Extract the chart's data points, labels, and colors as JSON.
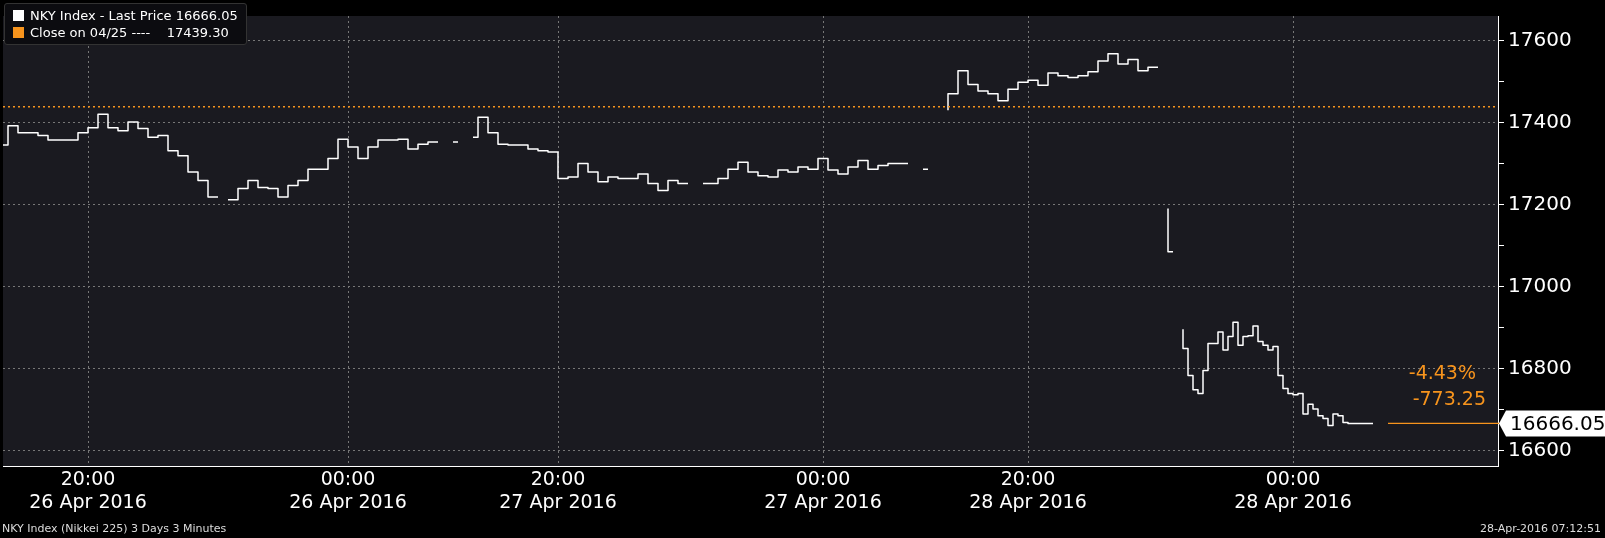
{
  "chart_data": {
    "type": "step",
    "categories": [
      null,
      null,
      null,
      null,
      null,
      null,
      null,
      null,
      null,
      null,
      null,
      null,
      null,
      null,
      null,
      null,
      null,
      "20:00\n26 Apr 2016",
      null,
      null,
      null,
      null,
      null,
      null,
      null,
      null,
      null,
      null,
      null,
      null,
      null,
      null,
      null,
      null,
      null,
      null,
      null,
      null,
      null,
      null,
      null,
      null,
      null,
      null,
      null,
      null,
      null,
      null,
      null,
      null,
      null,
      null,
      null,
      null,
      null,
      null,
      null,
      null,
      null,
      null,
      null,
      null,
      null,
      null,
      null,
      null,
      null,
      null,
      null,
      "00:00\n26 Apr 2016",
      null,
      null,
      null,
      null,
      null,
      null,
      null,
      null,
      null,
      null,
      null,
      null,
      null,
      null,
      null,
      null,
      null,
      null,
      null,
      null,
      null,
      null,
      null,
      null,
      null,
      null,
      null,
      null,
      null,
      null,
      null,
      null,
      null,
      null,
      null,
      null,
      null,
      null,
      null,
      null,
      null,
      "20:00\n27 Apr 2016",
      null,
      null,
      null,
      null,
      null,
      null,
      null,
      null,
      null,
      null,
      null,
      null,
      null,
      null,
      null,
      null,
      null,
      null,
      null,
      null,
      null,
      null,
      null,
      null,
      null,
      null,
      null,
      null,
      null,
      null,
      null,
      null,
      null,
      null,
      null,
      null,
      null,
      null,
      null,
      null,
      null,
      null,
      null,
      null,
      null,
      null,
      null,
      null,
      null,
      null,
      null,
      null,
      "00:00\n27 Apr 2016",
      null,
      null,
      null,
      null,
      null,
      null,
      null,
      null,
      null,
      null,
      null,
      null,
      null,
      null,
      null,
      null,
      null,
      null,
      null,
      null,
      null,
      null,
      null,
      null,
      null,
      null,
      null,
      null,
      null,
      null,
      null,
      null,
      null,
      null,
      null,
      null,
      null,
      null,
      null,
      null,
      "20:00\n28 Apr 2016",
      null,
      null,
      null,
      null,
      null,
      null,
      null,
      null,
      null,
      null,
      null,
      null,
      null,
      null,
      null,
      null,
      null,
      null,
      null,
      null,
      null,
      null,
      null,
      null,
      null,
      null,
      null,
      null,
      null,
      null,
      null,
      null,
      null,
      null,
      null,
      null,
      null,
      null,
      null,
      null,
      null,
      null,
      null,
      null,
      null,
      null,
      null,
      null,
      null,
      null,
      null,
      null,
      "00:00\n28 Apr 2016",
      null,
      null,
      null,
      null,
      null,
      null,
      null,
      null,
      null,
      null,
      null,
      null,
      null,
      null,
      null,
      null,
      null,
      null,
      null,
      null,
      null,
      null,
      null,
      null,
      null,
      null,
      null,
      null,
      null,
      null,
      null,
      null,
      null,
      null,
      null,
      null,
      null,
      null,
      null,
      null,
      null
    ],
    "series": [
      {
        "name": "NKY Index - Last Price 16666.05",
        "color": "#ffffff",
        "values": [
          17346,
          17346,
          17393,
          17393,
          17376,
          17376,
          17376,
          17376,
          17369,
          17369,
          17358,
          17358,
          17358,
          17358,
          17358,
          17358,
          17376,
          17376,
          17388,
          17388,
          17421,
          17421,
          17388,
          17388,
          17381,
          17381,
          17402,
          17402,
          17386,
          17386,
          17365,
          17365,
          17369,
          17369,
          17332,
          17332,
          17320,
          17320,
          17280,
          17280,
          17259,
          17259,
          17219,
          17219,
          null,
          17212,
          17212,
          17212,
          17240,
          17240,
          17259,
          17259,
          17242,
          17242,
          17240,
          17240,
          17219,
          17219,
          17247,
          17247,
          17259,
          17259,
          17287,
          17287,
          17287,
          17287,
          17313,
          17313,
          17360,
          17360,
          17341,
          17341,
          17313,
          17313,
          17341,
          17341,
          17358,
          17358,
          17358,
          17358,
          17360,
          17360,
          17336,
          17336,
          17348,
          17348,
          17353,
          17353,
          null,
          null,
          17353,
          17353,
          null,
          null,
          17365,
          17365,
          17414,
          17414,
          17376,
          17376,
          17348,
          17348,
          17346,
          17346,
          17346,
          17346,
          17336,
          17336,
          17332,
          17332,
          17329,
          17329,
          17264,
          17264,
          17268,
          17268,
          17301,
          17301,
          17280,
          17280,
          17256,
          17256,
          17268,
          17268,
          17264,
          17264,
          17264,
          17264,
          17275,
          17275,
          17252,
          17252,
          17235,
          17235,
          17259,
          17259,
          17252,
          17252,
          null,
          null,
          17252,
          17252,
          17252,
          17252,
          17264,
          17264,
          17287,
          17287,
          17304,
          17304,
          17280,
          17280,
          17271,
          17271,
          17268,
          17268,
          17285,
          17285,
          17280,
          17280,
          17292,
          17292,
          17287,
          17287,
          17313,
          17313,
          17285,
          17285,
          17275,
          17275,
          17292,
          17292,
          17308,
          17308,
          17287,
          17287,
          17296,
          17296,
          17301,
          17301,
          17301,
          17301,
          null,
          null,
          17287,
          17287,
          null,
          null,
          null,
          17431,
          17471,
          17471,
          17527,
          17527,
          17494,
          17494,
          17478,
          17478,
          17471,
          17471,
          17454,
          17454,
          17482,
          17482,
          17499,
          17499,
          17504,
          17504,
          17492,
          17492,
          17522,
          17522,
          17515,
          17515,
          17511,
          17511,
          17515,
          17515,
          17525,
          17525,
          17551,
          17551,
          17569,
          17569,
          17544,
          17544,
          17555,
          17555,
          17527,
          17527,
          17536,
          17536,
          null,
          17191,
          17085,
          null,
          16896,
          16849,
          16783,
          16748,
          16739,
          16795,
          16861,
          16861,
          16889,
          16845,
          16878,
          16913,
          16857,
          16878,
          16880,
          16904,
          16866,
          16857,
          16845,
          16854,
          16783,
          16751,
          16739,
          16736,
          16739,
          16689,
          16713,
          16701,
          16685,
          16678,
          16661,
          16689,
          16685,
          16668,
          16666,
          16666,
          16666,
          16666,
          16666,
          null,
          null,
          null,
          null,
          null,
          null,
          null,
          null,
          null,
          null,
          null,
          null,
          null,
          null,
          null,
          null,
          null,
          null,
          null,
          null,
          null,
          null,
          null,
          null,
          null
        ]
      }
    ],
    "ylim": [
      16562,
      17661
    ],
    "yticks": [
      16600,
      {
        "value": 16700,
        "label": null
      },
      16800,
      {
        "value": 16900,
        "label": null
      },
      17000,
      {
        "value": 17100,
        "label": null
      },
      17200,
      {
        "value": 17300,
        "label": null
      },
      17400,
      {
        "value": 17500,
        "label": null
      },
      17600
    ],
    "ref_lines": [
      {
        "axis": "y",
        "value": 17439.3,
        "label": "Close on 04/25 ----    17439.30",
        "color": "#f7941d",
        "line_style": "dotted"
      }
    ],
    "annotations": [
      "-4.43%",
      "-773.25",
      "16666.05",
      "NKY Index (Nikkei 225) 3 Days 3 Minutes",
      "28-Apr-2016 07:12:51"
    ],
    "grid": true,
    "legend": "top left",
    "marker": "none",
    "line_style": "solid"
  }
}
